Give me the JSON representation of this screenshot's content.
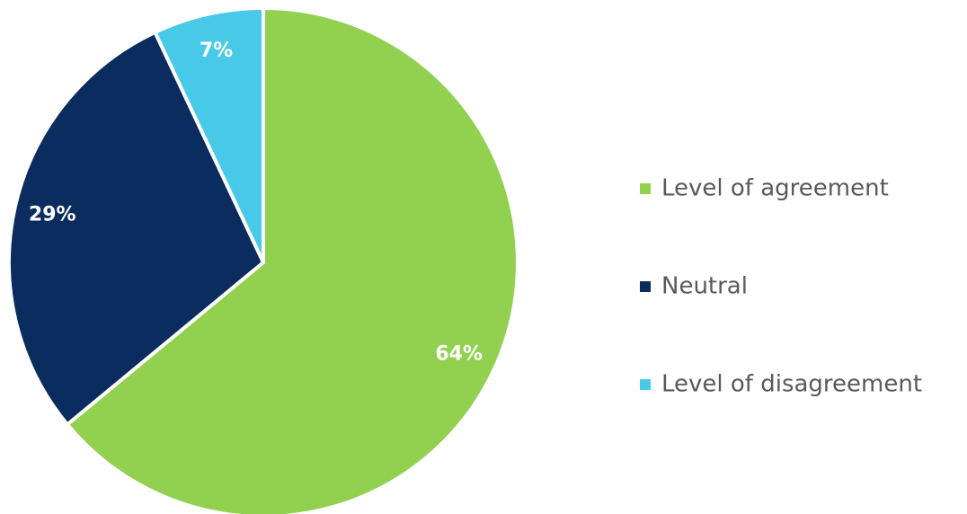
{
  "chart_data": {
    "type": "pie",
    "categories": [
      "Level of agreement",
      "Neutral",
      "Level of disagreement"
    ],
    "values": [
      64,
      29,
      7
    ],
    "value_labels": [
      "64%",
      "29%",
      "7%"
    ],
    "colors": [
      "#92d050",
      "#0b2c5e",
      "#48c9e8"
    ],
    "legend": "right"
  }
}
